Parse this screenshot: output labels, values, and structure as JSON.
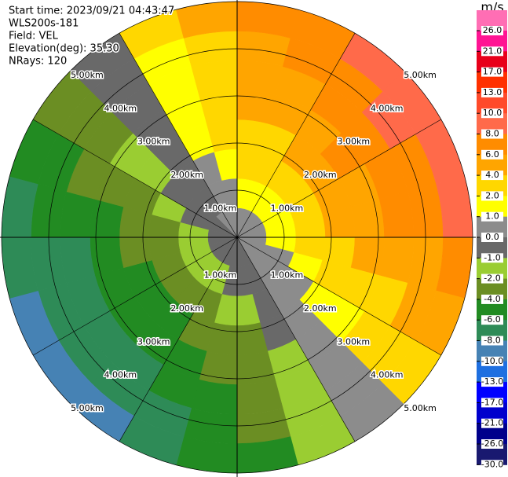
{
  "chart_data": {
    "type": "ppi",
    "info": [
      "Start time: 2023/09/21 04:43:47",
      "WLS200s-181",
      "Field: VEL",
      "Elevation(deg): 35.30",
      "NRays: 120"
    ],
    "rings": [
      {
        "value": 1,
        "label": "1.00km"
      },
      {
        "value": 2,
        "label": "2.00km"
      },
      {
        "value": 3,
        "label": "3.00km"
      },
      {
        "value": 4,
        "label": "4.00km"
      },
      {
        "value": 5,
        "label": "5.00km"
      }
    ],
    "field": {
      "azimuths": [
        7.5,
        22.5,
        37.5,
        52.5,
        67.5,
        82.5,
        97.5,
        112.5,
        127.5,
        142.5,
        157.5,
        172.5,
        187.5,
        202.5,
        217.5,
        232.5,
        247.5,
        262.5,
        277.5,
        292.5,
        307.5,
        322.5,
        337.5,
        352.5
      ],
      "gate_edges": [
        0,
        0.625,
        1.25,
        1.875,
        2.5,
        3.125,
        3.75,
        4.375,
        5
      ],
      "values": [
        [
          0.3,
          1.0,
          2.0,
          3.1,
          4.1,
          4.8,
          5.4,
          6.1
        ],
        [
          0.4,
          1.3,
          2.5,
          3.8,
          5.0,
          5.9,
          6.7,
          7.6
        ],
        [
          0.5,
          1.4,
          2.9,
          4.3,
          5.7,
          6.7,
          7.6,
          8.6
        ],
        [
          0.5,
          1.5,
          3.0,
          4.5,
          6.0,
          7.0,
          8.0,
          9.0
        ],
        [
          0.5,
          1.5,
          2.9,
          4.4,
          5.9,
          6.9,
          7.8,
          8.8
        ],
        [
          0.4,
          1.3,
          2.7,
          4.0,
          5.3,
          6.2,
          7.1,
          8.0
        ],
        [
          0.4,
          1.1,
          2.2,
          3.3,
          4.4,
          5.2,
          5.9,
          6.7
        ],
        [
          0.3,
          0.8,
          1.6,
          2.4,
          3.2,
          3.8,
          4.3,
          4.9
        ],
        [
          0.2,
          0.5,
          0.9,
          1.4,
          1.8,
          2.1,
          2.4,
          2.7
        ],
        [
          0.0,
          0.1,
          0.1,
          0.2,
          0.2,
          0.3,
          0.3,
          0.4
        ],
        [
          -0.1,
          -0.3,
          -0.7,
          -1.0,
          -1.3,
          -1.5,
          -1.8,
          -2.0
        ],
        [
          -0.2,
          -0.7,
          -1.4,
          -2.1,
          -2.8,
          -3.2,
          -3.7,
          -4.1
        ],
        [
          -0.3,
          -1.0,
          -2.0,
          -3.0,
          -4.0,
          -4.7,
          -5.4,
          -6.0
        ],
        [
          -0.4,
          -1.3,
          -2.5,
          -3.8,
          -5.0,
          -5.9,
          -6.7,
          -7.6
        ],
        [
          -0.5,
          -1.4,
          -2.9,
          -4.3,
          -5.7,
          -6.7,
          -7.6,
          -8.6
        ],
        [
          -0.5,
          -1.5,
          -3.0,
          -4.5,
          -6.0,
          -7.0,
          -8.0,
          -9.0
        ],
        [
          -0.5,
          -1.5,
          -2.9,
          -4.4,
          -5.9,
          -6.9,
          -7.8,
          -8.8
        ],
        [
          -0.4,
          -1.3,
          -2.7,
          -4.0,
          -5.3,
          -6.2,
          -7.1,
          -8.0
        ],
        [
          -0.4,
          -1.1,
          -2.2,
          -3.3,
          -4.4,
          -5.2,
          -5.9,
          -6.7
        ],
        [
          -0.3,
          -0.8,
          -1.6,
          -2.4,
          -3.2,
          -3.8,
          -4.3,
          -4.9
        ],
        [
          -0.2,
          -0.5,
          -0.9,
          -1.4,
          -1.8,
          -2.1,
          -2.4,
          -2.7
        ],
        [
          0.0,
          -0.1,
          -0.1,
          -0.2,
          -0.2,
          -0.3,
          -0.3,
          -0.4
        ],
        [
          0.1,
          0.3,
          0.7,
          1.0,
          1.3,
          1.5,
          1.8,
          2.0
        ],
        [
          0.2,
          0.7,
          1.4,
          2.1,
          2.8,
          3.2,
          3.7,
          4.1
        ]
      ]
    },
    "colorbar": {
      "title": "m/s",
      "ticks": [
        {
          "value": 26,
          "label": "26.0"
        },
        {
          "value": 21,
          "label": "21.0"
        },
        {
          "value": 17,
          "label": "17.0"
        },
        {
          "value": 13,
          "label": "13.0"
        },
        {
          "value": 10,
          "label": "10.0"
        },
        {
          "value": 8,
          "label": "8.0"
        },
        {
          "value": 6,
          "label": "6.0"
        },
        {
          "value": 4,
          "label": "4.0"
        },
        {
          "value": 2,
          "label": "2.0"
        },
        {
          "value": 1,
          "label": "1.0"
        },
        {
          "value": 0,
          "label": "0.0"
        },
        {
          "value": -1,
          "label": "-1.0"
        },
        {
          "value": -2,
          "label": "-2.0"
        },
        {
          "value": -4,
          "label": "-4.0"
        },
        {
          "value": -6,
          "label": "-6.0"
        },
        {
          "value": -8,
          "label": "-8.0"
        },
        {
          "value": -10,
          "label": "-10.0"
        },
        {
          "value": -13,
          "label": "-13.0"
        },
        {
          "value": -17,
          "label": "-17.0"
        },
        {
          "value": -21,
          "label": "-21.0"
        },
        {
          "value": -26,
          "label": "-26.0"
        },
        {
          "value": -30,
          "label": "-30.0"
        }
      ],
      "colors": [
        "#ff6eb4",
        "#ff1493",
        "#e8001a",
        "#ff3000",
        "#ff4a2a",
        "#ff6a4a",
        "#ff8c00",
        "#ffa500",
        "#ffd700",
        "#ffff00",
        "#8c8c8c",
        "#696969",
        "#9acd32",
        "#6b8e23",
        "#228b22",
        "#2e8b57",
        "#4682b4",
        "#1e6fe0",
        "#0000ff",
        "#0000cd",
        "#00008b",
        "#191970"
      ]
    }
  }
}
